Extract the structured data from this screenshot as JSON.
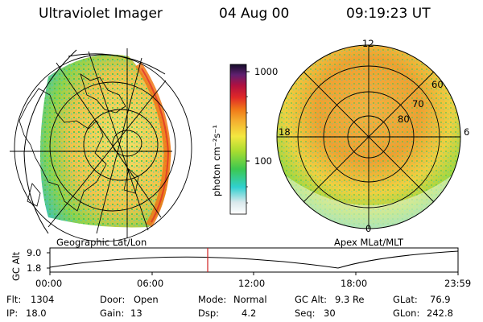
{
  "header": {
    "title": "Ultraviolet Imager",
    "date": "04 Aug 00",
    "time": "09:19:23 UT"
  },
  "left_panel": {
    "label": "Geographic Lat/Lon"
  },
  "right_panel": {
    "label": "Apex MLat/MLT",
    "mlt_labels": {
      "top": "12",
      "left": "18",
      "right": "6",
      "bottom": "0"
    },
    "lat_rings": [
      "60",
      "70",
      "80"
    ]
  },
  "colorbar": {
    "unit_label": "photon cm⁻²s⁻¹",
    "ticks": [
      "1000",
      "100"
    ],
    "scale": "log",
    "range": [
      20,
      1300
    ]
  },
  "altitude_plot": {
    "ylabel": "GC Alt",
    "yticks": [
      "9.0",
      "1.8"
    ],
    "xticks": [
      "00:00",
      "06:00",
      "12:00",
      "18:00",
      "23:59"
    ],
    "marker_time": "09:19",
    "marker_color": "#d02020"
  },
  "info": {
    "flt_label": "Flt:",
    "flt_value": "1304",
    "ip_label": "IP:",
    "ip_value": "18.0",
    "door_label": "Door:",
    "door_value": "Open",
    "gain_label": "Gain:",
    "gain_value": "13",
    "mode_label": "Mode:",
    "mode_value": "Normal",
    "dsp_label": "Dsp:",
    "dsp_value": "4.2",
    "gcalt_label": "GC Alt:",
    "gcalt_value": "9.3 Re",
    "seq_label": "Seq:",
    "seq_value": "30",
    "glat_label": "GLat:",
    "glat_value": "76.9",
    "glon_label": "GLon:",
    "glon_value": "242.8"
  },
  "colors": {
    "dark": "#1a1030",
    "red": "#cc2020",
    "orange": "#f08020",
    "yellow": "#f4e040",
    "green": "#5ac83c",
    "cyan": "#30d0d0",
    "pale": "#e8f0f4"
  }
}
